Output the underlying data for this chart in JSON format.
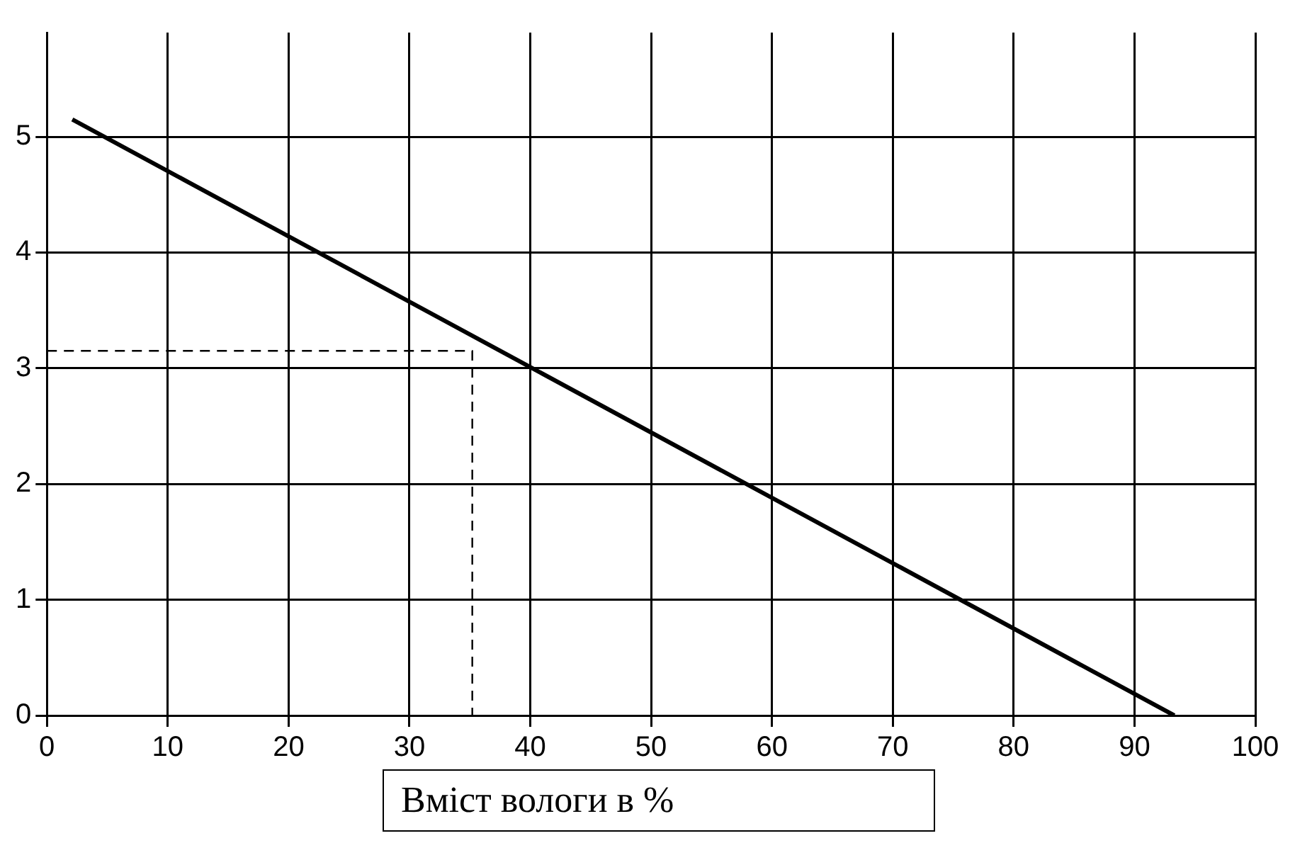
{
  "chart_data": {
    "type": "line",
    "xlabel": "Вміст вологи в %",
    "xlim": [
      0,
      100
    ],
    "xticks": [
      0,
      10,
      20,
      30,
      40,
      50,
      60,
      70,
      80,
      90,
      100
    ],
    "ylim": [
      0,
      5.9
    ],
    "yticks": [
      0,
      1,
      2,
      3,
      4,
      5
    ],
    "grid": true,
    "legend": false,
    "marker": "none",
    "series": [
      {
        "color": "#000000",
        "x": [
          2.1,
          93.3
        ],
        "values": [
          5.15,
          0
        ],
        "line_style": "solid"
      },
      {
        "color": "#000000",
        "x": [
          0,
          35.2,
          35.2
        ],
        "values": [
          3.15,
          3.15,
          0
        ],
        "line_style": "dashed"
      }
    ]
  }
}
